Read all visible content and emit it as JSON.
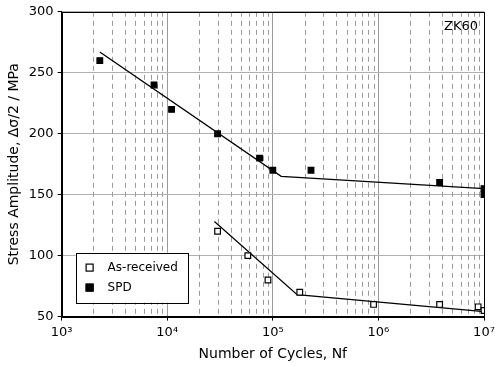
{
  "chart_data": {
    "type": "scatter",
    "annotation": "ZK60",
    "x_label": "Number of Cycles, Nf",
    "y_label": "Stress Amplitude, Δσ/2 / MPa",
    "log": "x",
    "grid": true,
    "legend": "lower left",
    "xlim": [
      1000,
      10000000
    ],
    "xticks": [
      {
        "value": 1000,
        "label": "10³"
      },
      {
        "value": 10000,
        "label": "10⁴"
      },
      {
        "value": 100000,
        "label": "10⁵"
      },
      {
        "value": 1000000,
        "label": "10⁶"
      },
      {
        "value": 10000000,
        "label": "10⁷"
      }
    ],
    "ylim": [
      50,
      300
    ],
    "yticks": [
      50,
      100,
      150,
      200,
      250,
      300
    ],
    "series": [
      {
        "name": "As-received",
        "color": "#000000",
        "marker": "open_square",
        "x": [
          30000,
          58000,
          90000,
          180000,
          900000,
          3800000,
          8800000,
          10000000
        ],
        "values": [
          120,
          100,
          80,
          70,
          60,
          60,
          58,
          55
        ],
        "fit_x": [
          28000,
          170000,
          10000000
        ],
        "fit_values": [
          128,
          68,
          54
        ]
      },
      {
        "name": "SPD",
        "color": "#000000",
        "marker": "square",
        "x": [
          2300,
          7500,
          11000,
          30000,
          75000,
          100000,
          230000,
          3800000,
          10000000,
          10000000
        ],
        "values": [
          260,
          240,
          220,
          200,
          180,
          170,
          170,
          160,
          155,
          150
        ],
        "fit_x": [
          2300,
          120000,
          10000000
        ],
        "fit_values": [
          267,
          165,
          155
        ]
      }
    ]
  }
}
